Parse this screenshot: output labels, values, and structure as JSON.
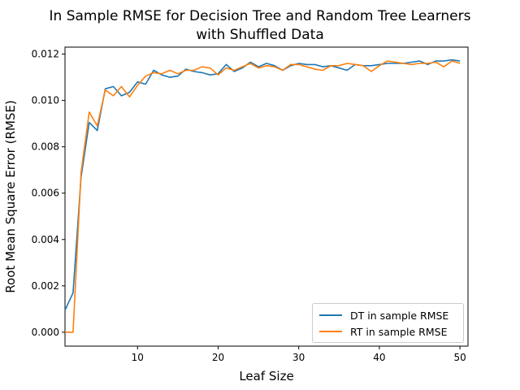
{
  "chart_data": {
    "type": "line",
    "title": "In Sample RMSE for Decision Tree and Random Tree Learners",
    "subtitle": "with Shuffled Data",
    "xlabel": "Leaf Size",
    "ylabel": "Root Mean Square Error (RMSE)",
    "xlim": [
      1,
      51
    ],
    "ylim": [
      -0.0006,
      0.0123
    ],
    "xticks": [
      "10",
      "20",
      "30",
      "40",
      "50"
    ],
    "yticks": [
      "0.000",
      "0.002",
      "0.004",
      "0.006",
      "0.008",
      "0.010",
      "0.012"
    ],
    "grid": false,
    "legend_position": "lower-right",
    "x": [
      1,
      2,
      3,
      4,
      5,
      6,
      7,
      8,
      9,
      10,
      11,
      12,
      13,
      14,
      15,
      16,
      17,
      18,
      19,
      20,
      21,
      22,
      23,
      24,
      25,
      26,
      27,
      28,
      29,
      30,
      31,
      32,
      33,
      34,
      35,
      36,
      37,
      38,
      39,
      40,
      41,
      42,
      43,
      44,
      45,
      46,
      47,
      48,
      49,
      50
    ],
    "series": [
      {
        "name": "DT in sample RMSE",
        "color": "#1f77b4",
        "values": [
          0.00095,
          0.0017,
          0.0067,
          0.00905,
          0.0087,
          0.0105,
          0.0106,
          0.0102,
          0.01035,
          0.0108,
          0.0107,
          0.0113,
          0.0111,
          0.011,
          0.01105,
          0.01135,
          0.01125,
          0.0112,
          0.0111,
          0.01115,
          0.01155,
          0.01125,
          0.0114,
          0.01165,
          0.01145,
          0.0116,
          0.0115,
          0.0113,
          0.0115,
          0.0116,
          0.01155,
          0.01155,
          0.01145,
          0.0115,
          0.0114,
          0.0113,
          0.01155,
          0.0115,
          0.0115,
          0.01155,
          0.0116,
          0.0116,
          0.0116,
          0.01165,
          0.0117,
          0.01155,
          0.0117,
          0.0117,
          0.01175,
          0.0117
        ]
      },
      {
        "name": "RT in sample RMSE",
        "color": "#ff7f0e",
        "values": [
          0.0,
          0.0,
          0.0069,
          0.0095,
          0.0089,
          0.01045,
          0.0102,
          0.0106,
          0.01015,
          0.01065,
          0.01105,
          0.0112,
          0.01115,
          0.0113,
          0.01115,
          0.0113,
          0.0113,
          0.01145,
          0.0114,
          0.0111,
          0.0114,
          0.0113,
          0.01145,
          0.0116,
          0.0114,
          0.0115,
          0.01145,
          0.0113,
          0.01155,
          0.01155,
          0.01145,
          0.01135,
          0.0113,
          0.0115,
          0.0115,
          0.0116,
          0.01155,
          0.0115,
          0.01125,
          0.0115,
          0.0117,
          0.01165,
          0.0116,
          0.01155,
          0.0116,
          0.0116,
          0.01165,
          0.01145,
          0.0117,
          0.0116
        ]
      }
    ]
  }
}
